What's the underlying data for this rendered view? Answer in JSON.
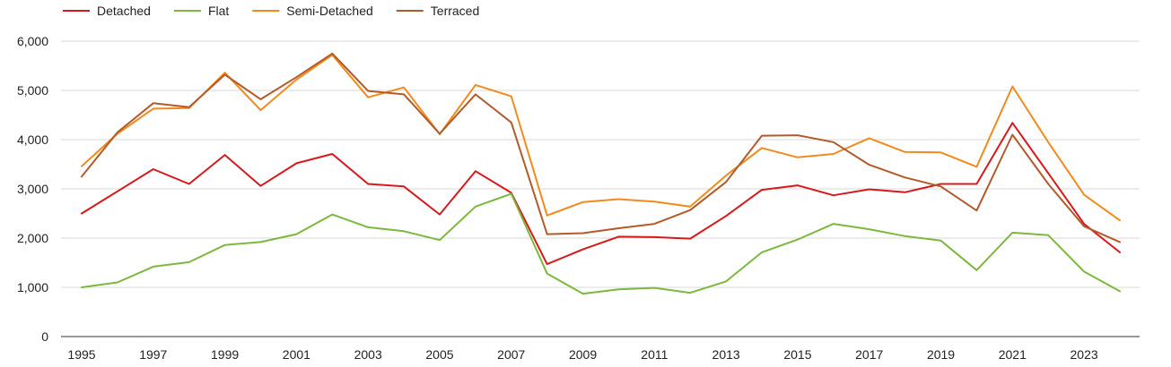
{
  "chart_data": {
    "type": "line",
    "title": "",
    "xlabel": "",
    "ylabel": "",
    "x": [
      1995,
      1996,
      1997,
      1998,
      1999,
      2000,
      2001,
      2002,
      2003,
      2004,
      2005,
      2006,
      2007,
      2008,
      2009,
      2010,
      2011,
      2012,
      2013,
      2014,
      2015,
      2016,
      2017,
      2018,
      2019,
      2020,
      2021,
      2022,
      2023,
      2024
    ],
    "x_tick_labels": [
      "1995",
      "1997",
      "1999",
      "2001",
      "2003",
      "2005",
      "2007",
      "2009",
      "2011",
      "2013",
      "2015",
      "2017",
      "2019",
      "2021",
      "2023"
    ],
    "y_tick_labels": [
      "0",
      "1,000",
      "2,000",
      "3,000",
      "4,000",
      "5,000",
      "6,000"
    ],
    "y_ticks": [
      0,
      1000,
      2000,
      3000,
      4000,
      5000,
      6000
    ],
    "ylim": [
      0,
      6000
    ],
    "xlim": [
      1995,
      2024
    ],
    "grid": "horizontal",
    "legend_position": "top-left",
    "series": [
      {
        "name": "Detached",
        "color": "#d7191c",
        "values": [
          2500,
          2950,
          3400,
          3100,
          3690,
          3060,
          3520,
          3710,
          3100,
          3050,
          2480,
          3360,
          2920,
          1470,
          1770,
          2030,
          2020,
          1990,
          2450,
          2980,
          3070,
          2870,
          2990,
          2930,
          3100,
          3100,
          4340,
          3320,
          2290,
          1710
        ]
      },
      {
        "name": "Flat",
        "color": "#7cb83e",
        "values": [
          1000,
          1100,
          1420,
          1510,
          1860,
          1920,
          2080,
          2480,
          2220,
          2140,
          1960,
          2640,
          2900,
          1280,
          870,
          960,
          990,
          890,
          1120,
          1710,
          1970,
          2290,
          2180,
          2040,
          1950,
          1350,
          2110,
          2060,
          1320,
          920
        ]
      },
      {
        "name": "Semi-Detached",
        "color": "#f28a1c",
        "values": [
          3460,
          4120,
          4630,
          4640,
          5360,
          4600,
          5220,
          5720,
          4860,
          5060,
          4110,
          5110,
          4880,
          2460,
          2730,
          2790,
          2740,
          2640,
          3270,
          3830,
          3640,
          3710,
          4030,
          3750,
          3740,
          3450,
          5080,
          3950,
          2880,
          2360
        ]
      },
      {
        "name": "Terraced",
        "color": "#b35a2a",
        "values": [
          3250,
          4150,
          4740,
          4660,
          5320,
          4820,
          5270,
          5750,
          4990,
          4920,
          4120,
          4920,
          4350,
          2080,
          2100,
          2200,
          2290,
          2570,
          3140,
          4080,
          4090,
          3950,
          3490,
          3230,
          3050,
          2560,
          4100,
          3100,
          2240,
          1920
        ]
      }
    ]
  }
}
